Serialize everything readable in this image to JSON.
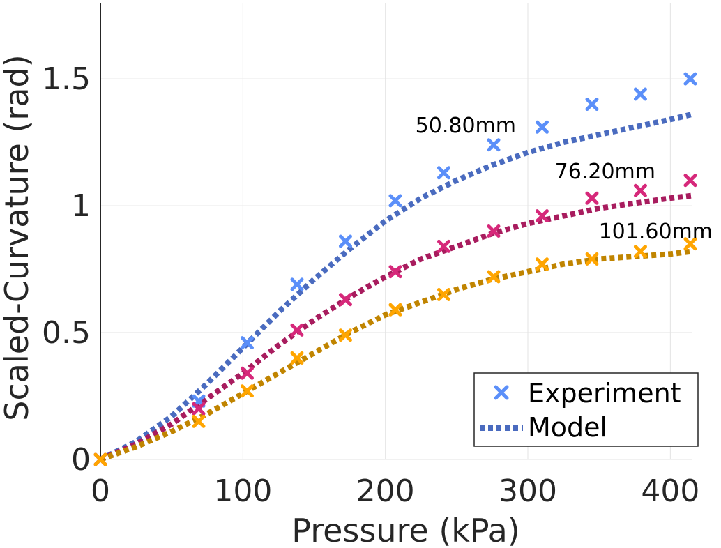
{
  "chart_data": {
    "type": "line",
    "xlabel": "Pressure (kPa)",
    "ylabel": "Scaled-Curvature (rad)",
    "xlim": [
      0,
      415
    ],
    "ylim": [
      0,
      1.8
    ],
    "xticks": [
      0,
      100,
      200,
      300,
      400
    ],
    "xtick_labels": [
      "0",
      "100",
      "200",
      "300",
      "400"
    ],
    "yticks": [
      0,
      0.5,
      1,
      1.5
    ],
    "ytick_labels": [
      "0",
      "0.5",
      "1",
      "1.5"
    ],
    "grid": true,
    "legend_position": "bottom-right",
    "legend": [
      {
        "label": "Experiment",
        "kind": "marker",
        "color": "#5b8ff9"
      },
      {
        "label": "Model",
        "kind": "dashed-line",
        "color": "#4a6bbf"
      }
    ],
    "series": [
      {
        "annotation": "50.80mm",
        "marker_color": "#5b8ff9",
        "line_color": "#4a6bbf",
        "experiment": {
          "x": [
            0,
            69,
            103,
            138,
            172,
            207,
            241,
            276,
            310,
            345,
            379,
            414
          ],
          "y": [
            0.0,
            0.23,
            0.46,
            0.69,
            0.86,
            1.02,
            1.13,
            1.24,
            1.31,
            1.4,
            1.44,
            1.5
          ]
        },
        "model": {
          "x": [
            0,
            25,
            50,
            75,
            100,
            125,
            150,
            175,
            200,
            225,
            250,
            275,
            300,
            325,
            350,
            375,
            400,
            415
          ],
          "y": [
            0.0,
            0.07,
            0.17,
            0.3,
            0.44,
            0.58,
            0.71,
            0.83,
            0.94,
            1.03,
            1.1,
            1.16,
            1.21,
            1.25,
            1.28,
            1.31,
            1.34,
            1.36
          ]
        }
      },
      {
        "annotation": "76.20mm",
        "marker_color": "#d6287a",
        "line_color": "#a81c5e",
        "experiment": {
          "x": [
            0,
            69,
            103,
            138,
            172,
            207,
            241,
            276,
            310,
            345,
            379,
            414
          ],
          "y": [
            0.0,
            0.2,
            0.34,
            0.51,
            0.63,
            0.74,
            0.84,
            0.9,
            0.96,
            1.03,
            1.06,
            1.1
          ]
        },
        "model": {
          "x": [
            0,
            25,
            50,
            75,
            100,
            125,
            150,
            175,
            200,
            225,
            250,
            275,
            300,
            325,
            350,
            375,
            400,
            415
          ],
          "y": [
            0.0,
            0.06,
            0.14,
            0.24,
            0.34,
            0.45,
            0.55,
            0.64,
            0.72,
            0.79,
            0.84,
            0.89,
            0.93,
            0.96,
            0.99,
            1.01,
            1.03,
            1.04
          ]
        }
      },
      {
        "annotation": "101.60mm",
        "marker_color": "#ffa500",
        "line_color": "#c08400",
        "experiment": {
          "x": [
            0,
            69,
            103,
            138,
            172,
            207,
            241,
            276,
            310,
            345,
            379,
            414
          ],
          "y": [
            0.0,
            0.15,
            0.27,
            0.4,
            0.49,
            0.59,
            0.65,
            0.72,
            0.77,
            0.79,
            0.82,
            0.85
          ]
        },
        "model": {
          "x": [
            0,
            25,
            50,
            75,
            100,
            125,
            150,
            175,
            200,
            225,
            250,
            275,
            300,
            325,
            350,
            375,
            400,
            415
          ],
          "y": [
            0.0,
            0.05,
            0.11,
            0.18,
            0.26,
            0.34,
            0.42,
            0.5,
            0.57,
            0.62,
            0.67,
            0.71,
            0.74,
            0.77,
            0.79,
            0.8,
            0.81,
            0.82
          ]
        }
      }
    ]
  }
}
